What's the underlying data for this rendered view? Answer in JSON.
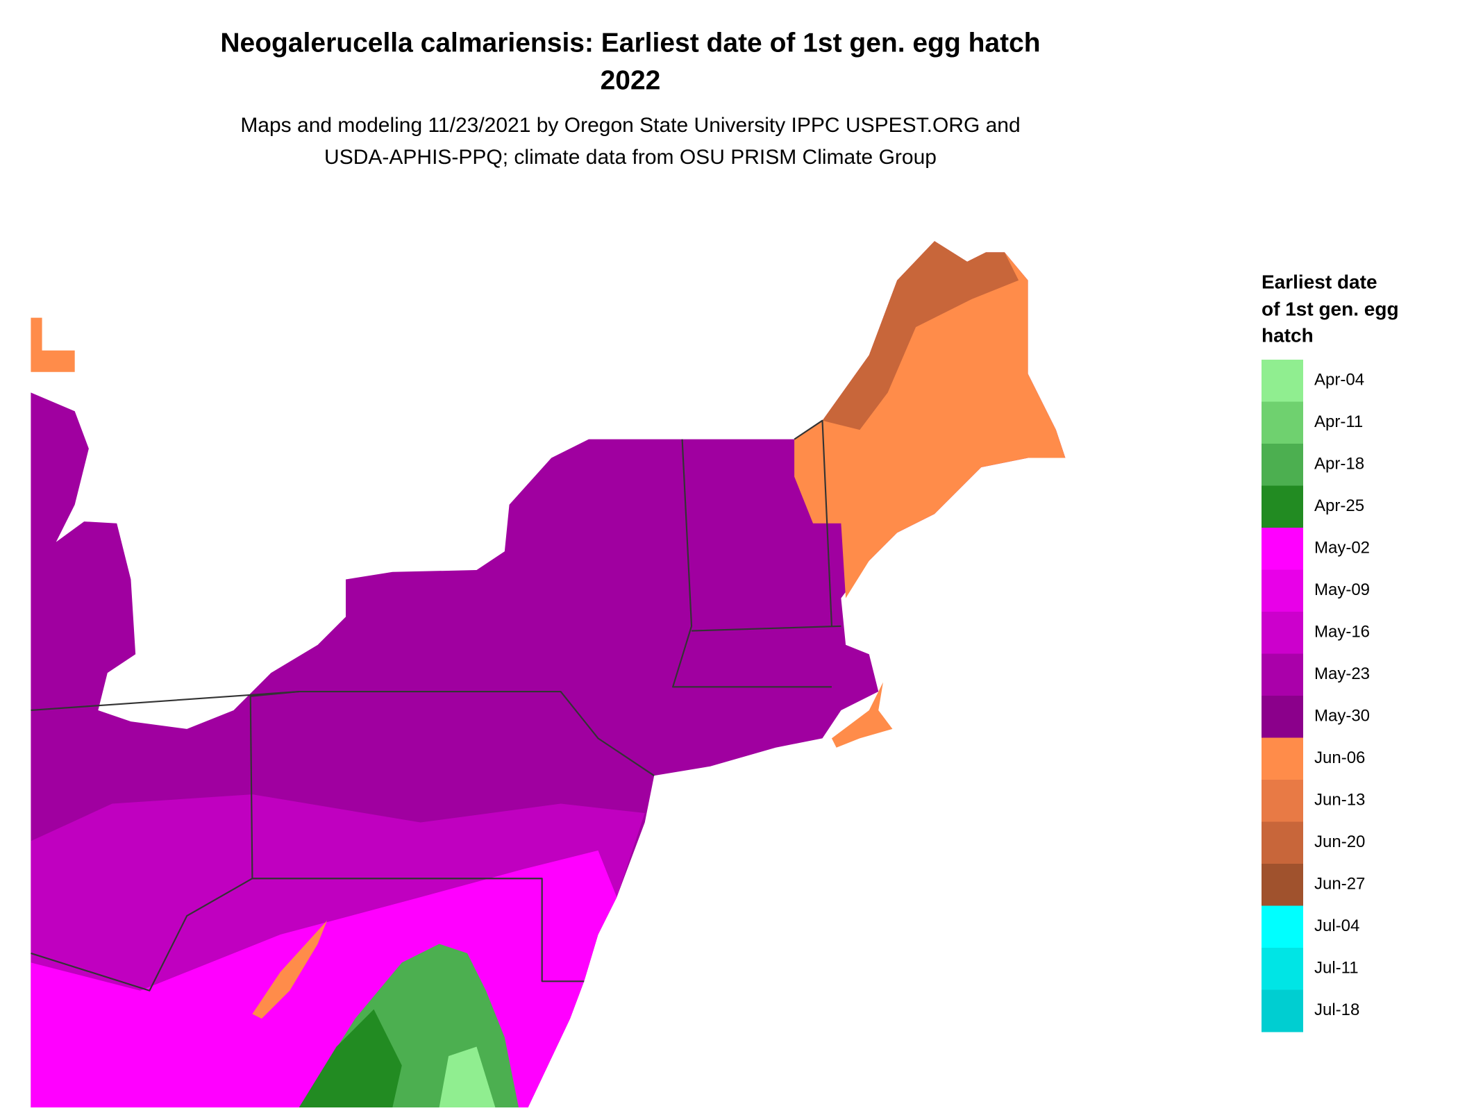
{
  "header": {
    "title_lines": [
      "Neogalerucella calmariensis: Earliest date of 1st gen. egg hatch",
      "2022"
    ],
    "subtitle_lines": [
      "Maps and modeling 11/23/2021 by Oregon State University IPPC USPEST.ORG and",
      "USDA-APHIS-PPQ; climate data from OSU PRISM Climate Group"
    ]
  },
  "legend": {
    "title_lines": [
      "Earliest date",
      "of 1st gen. egg",
      "hatch"
    ],
    "entries": [
      {
        "label": "Apr-04",
        "color": "#90ee90"
      },
      {
        "label": "Apr-11",
        "color": "#6fd16f"
      },
      {
        "label": "Apr-18",
        "color": "#4caf50"
      },
      {
        "label": "Apr-25",
        "color": "#228b22"
      },
      {
        "label": "May-02",
        "color": "#ff00ff"
      },
      {
        "label": "May-09",
        "color": "#e800e8"
      },
      {
        "label": "May-16",
        "color": "#cc00cc"
      },
      {
        "label": "May-23",
        "color": "#aa00aa"
      },
      {
        "label": "May-30",
        "color": "#8b008b"
      },
      {
        "label": "Jun-06",
        "color": "#ff8c4a"
      },
      {
        "label": "Jun-13",
        "color": "#e87a45"
      },
      {
        "label": "Jun-20",
        "color": "#c8663a"
      },
      {
        "label": "Jun-27",
        "color": "#a0522d"
      },
      {
        "label": "Jul-04",
        "color": "#00ffff"
      },
      {
        "label": "Jul-11",
        "color": "#00e5e5"
      },
      {
        "label": "Jul-18",
        "color": "#00ced1"
      }
    ]
  }
}
